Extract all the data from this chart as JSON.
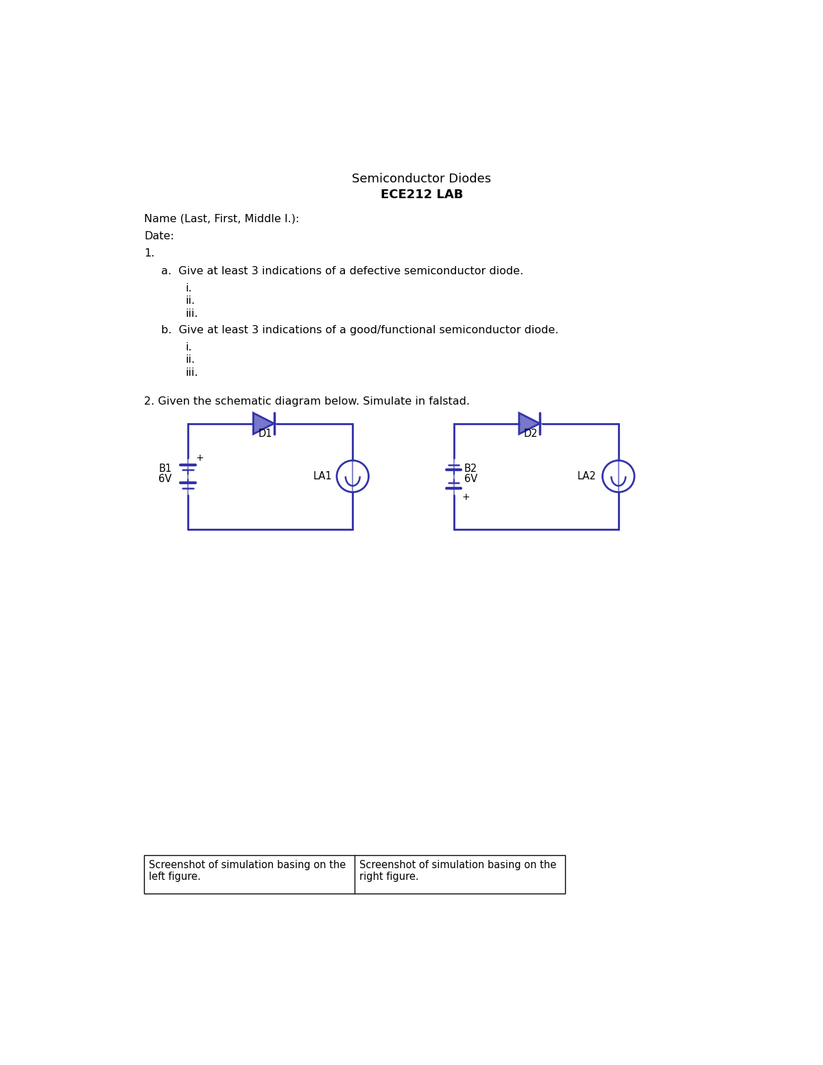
{
  "title1": "Semiconductor Diodes",
  "title2": "ECE212 LAB",
  "name_label": "Name (Last, First, Middle I.):",
  "date_label": "Date:",
  "q1": "1.",
  "q1a": "a.  Give at least 3 indications of a defective semiconductor diode.",
  "q1a_items": [
    "i.",
    "ii.",
    "iii."
  ],
  "q1b": "b.  Give at least 3 indications of a good/functional semiconductor diode.",
  "q1b_items": [
    "i.",
    "ii.",
    "iii."
  ],
  "q2": "2. Given the schematic diagram below. Simulate in falstad.",
  "circuit_color": "#3333AA",
  "circuit_color_light": "#8888CC",
  "diode_fill": "#7777CC",
  "table_left": "Screenshot of simulation basing on the\nleft figure.",
  "table_right": "Screenshot of simulation basing on the\nright figure.",
  "bg_color": "#ffffff",
  "text_color": "#000000",
  "font_size_title": 13,
  "font_size_body": 11.5,
  "font_size_circuit": 10.5
}
